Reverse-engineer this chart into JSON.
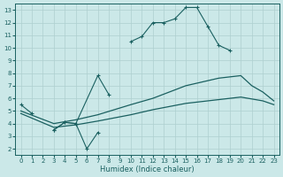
{
  "xlabel": "Humidex (Indice chaleur)",
  "xlim": [
    -0.5,
    23.5
  ],
  "ylim": [
    1.5,
    13.5
  ],
  "xticks": [
    0,
    1,
    2,
    3,
    4,
    5,
    6,
    7,
    8,
    9,
    10,
    11,
    12,
    13,
    14,
    15,
    16,
    17,
    18,
    19,
    20,
    21,
    22,
    23
  ],
  "yticks": [
    2,
    3,
    4,
    5,
    6,
    7,
    8,
    9,
    10,
    11,
    12,
    13
  ],
  "bg_color": "#cbe8e8",
  "grid_color": "#aecfcf",
  "line_color": "#1a6060",
  "seg1a": {
    "x": [
      0,
      1
    ],
    "y": [
      5.5,
      4.8
    ]
  },
  "seg1b": {
    "x": [
      3,
      4,
      5,
      6,
      7
    ],
    "y": [
      3.5,
      4.1,
      4.0,
      2.0,
      3.3
    ]
  },
  "seg1c": {
    "x": [
      10,
      11,
      12,
      13,
      14,
      15,
      16,
      17,
      18,
      19
    ],
    "y": [
      10.5,
      10.9,
      12.0,
      12.0,
      12.3,
      13.2,
      13.2,
      11.7,
      10.2,
      9.8
    ]
  },
  "seg2a": {
    "x": [
      3,
      4,
      5
    ],
    "y": [
      3.5,
      4.1,
      4.0
    ]
  },
  "seg2b": {
    "x": [
      5,
      7,
      8
    ],
    "y": [
      4.0,
      7.8,
      6.3
    ]
  },
  "line3": {
    "x": [
      0,
      3,
      5,
      7,
      10,
      12,
      15,
      18,
      20,
      21,
      22,
      23
    ],
    "y": [
      5.0,
      4.0,
      4.3,
      4.7,
      5.5,
      6.0,
      7.0,
      7.6,
      7.8,
      7.0,
      6.5,
      5.8
    ]
  },
  "line4": {
    "x": [
      0,
      3,
      5,
      7,
      10,
      12,
      15,
      18,
      20,
      22,
      23
    ],
    "y": [
      4.8,
      3.7,
      3.9,
      4.2,
      4.7,
      5.1,
      5.6,
      5.9,
      6.1,
      5.8,
      5.5
    ]
  }
}
